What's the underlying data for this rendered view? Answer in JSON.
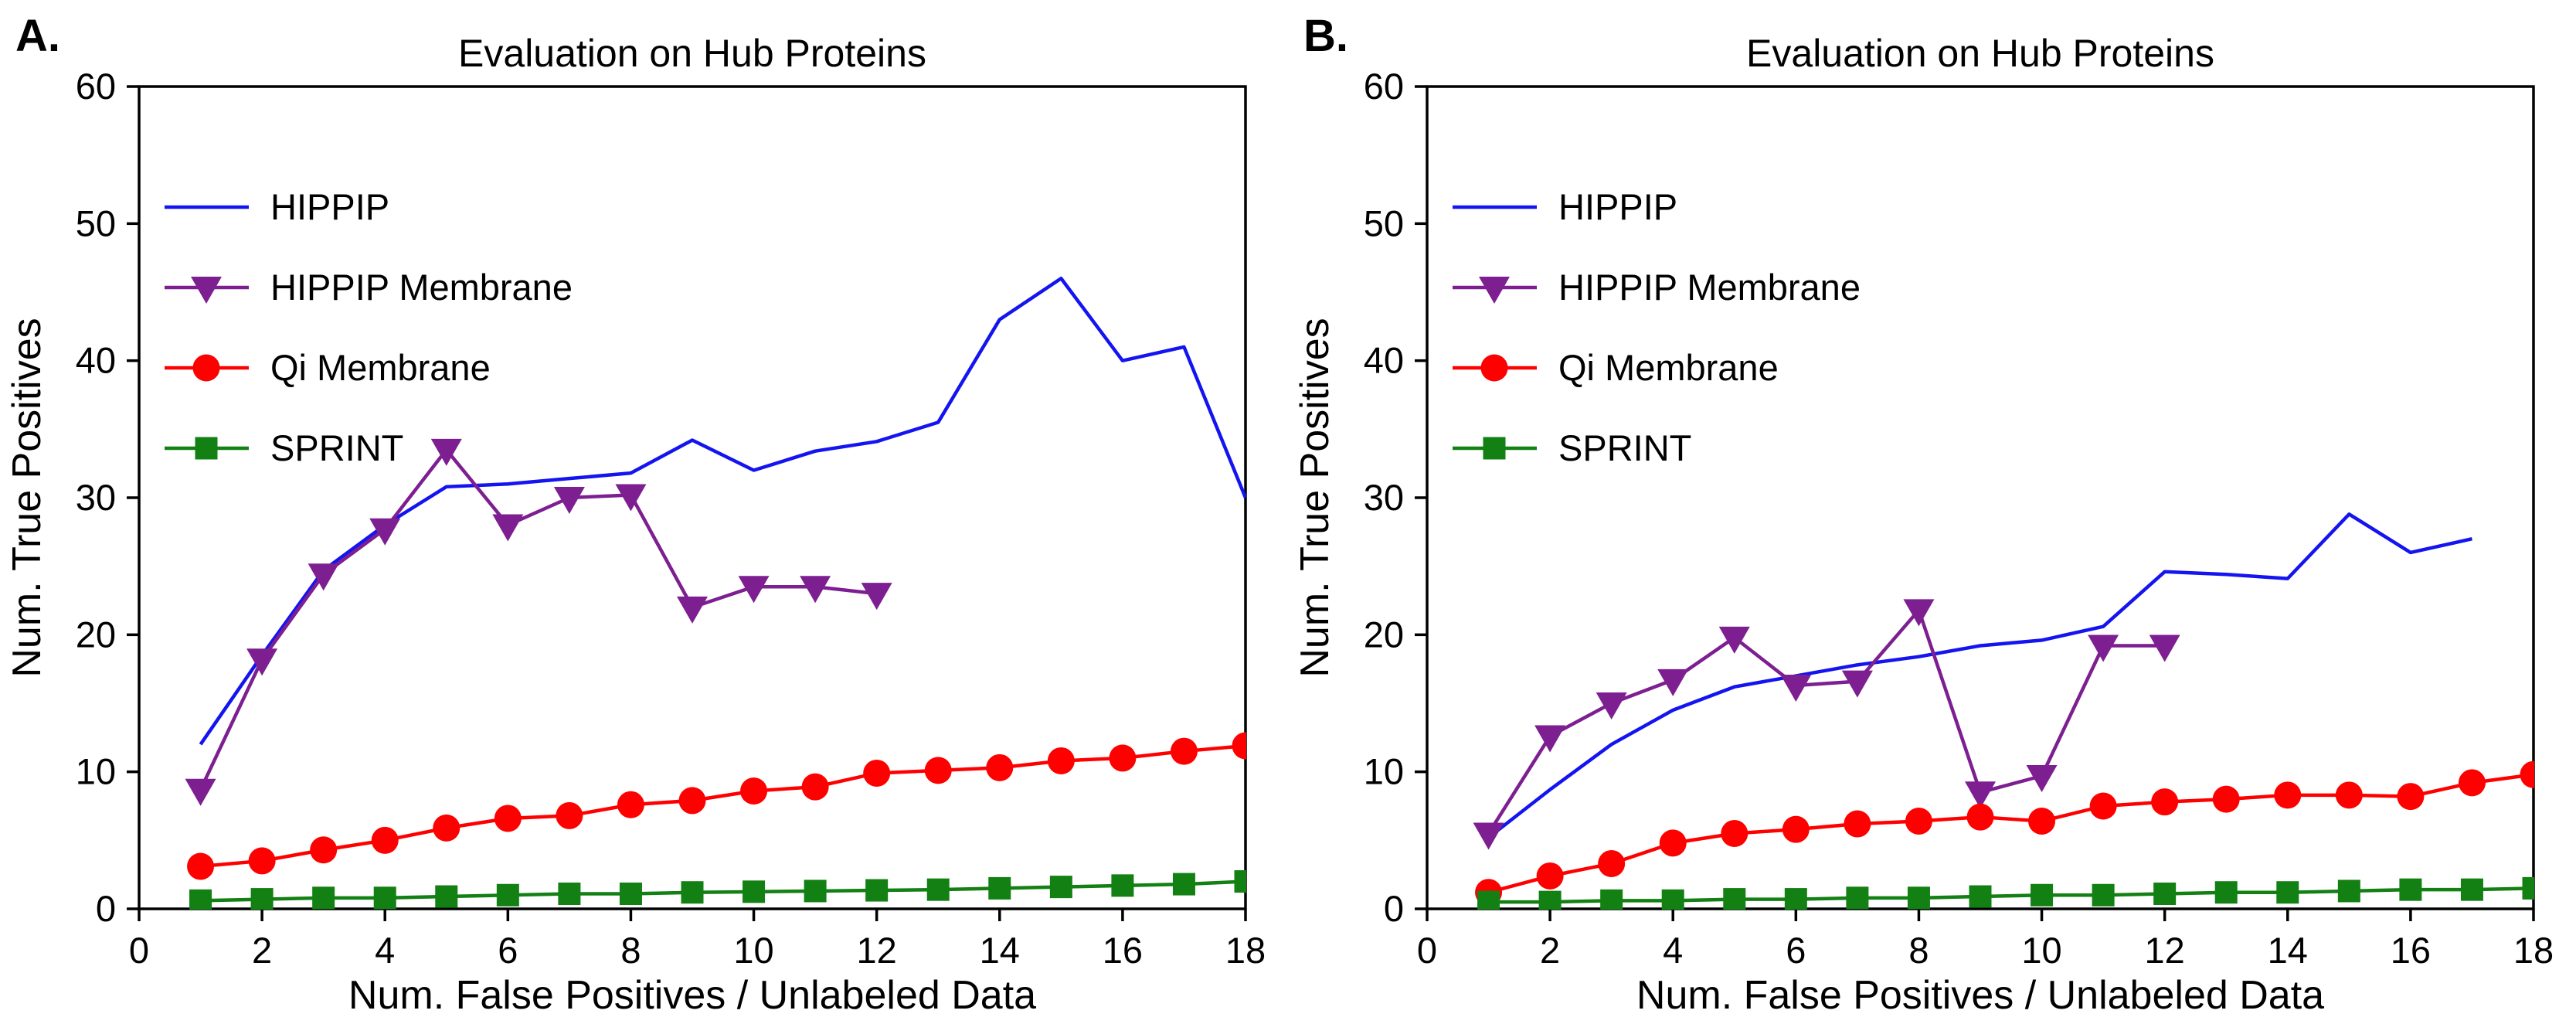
{
  "figure": {
    "background": "#ffffff",
    "text_color": "#000000"
  },
  "chart_data": [
    {
      "type": "line",
      "panel_label": "A.",
      "title": "Evaluation on Hub Proteins",
      "xlabel": "Num. False Positives / Unlabeled Data",
      "ylabel": "Num. True Positives",
      "xlim": [
        0,
        18
      ],
      "ylim": [
        0,
        60
      ],
      "xticks": [
        0,
        2,
        4,
        6,
        8,
        10,
        12,
        14,
        16,
        18
      ],
      "yticks": [
        0,
        10,
        20,
        30,
        40,
        50,
        60
      ],
      "grid": false,
      "legend_position": "top-left",
      "series": [
        {
          "name": "HIPPIP",
          "color": "#1414f0",
          "marker": "none",
          "x": [
            1,
            2,
            3,
            4,
            5,
            6,
            7,
            8,
            9,
            10,
            11,
            12,
            13,
            14,
            15,
            16,
            17,
            18
          ],
          "y": [
            12,
            18.5,
            24.7,
            28,
            30.8,
            31,
            31.4,
            31.8,
            34.2,
            32,
            33.4,
            34.1,
            35.5,
            43,
            46,
            40,
            41,
            30
          ]
        },
        {
          "name": "HIPPIP Membrane",
          "color": "#7d1f91",
          "marker": "triangle-down",
          "x": [
            1,
            2,
            3,
            4,
            5,
            6,
            7,
            8,
            9,
            10,
            11,
            12
          ],
          "y": [
            8.7,
            18.2,
            24.4,
            27.7,
            33.5,
            28,
            30,
            30.2,
            22,
            23.5,
            23.5,
            23
          ]
        },
        {
          "name": "Qi Membrane",
          "color": "#ff0000",
          "marker": "circle",
          "x": [
            1,
            2,
            3,
            4,
            5,
            6,
            7,
            8,
            9,
            10,
            11,
            12,
            13,
            14,
            15,
            16,
            17,
            18
          ],
          "y": [
            3.1,
            3.5,
            4.3,
            5,
            5.9,
            6.6,
            6.8,
            7.6,
            7.9,
            8.6,
            8.9,
            9.9,
            10.1,
            10.3,
            10.8,
            11,
            11.5,
            11.9
          ]
        },
        {
          "name": "SPRINT",
          "color": "#128012",
          "marker": "square",
          "x": [
            1,
            2,
            3,
            4,
            5,
            6,
            7,
            8,
            9,
            10,
            11,
            12,
            13,
            14,
            15,
            16,
            17,
            18
          ],
          "y": [
            0.6,
            0.7,
            0.8,
            0.8,
            0.9,
            1,
            1.1,
            1.1,
            1.2,
            1.25,
            1.3,
            1.35,
            1.4,
            1.5,
            1.6,
            1.7,
            1.8,
            2
          ]
        }
      ]
    },
    {
      "type": "line",
      "panel_label": "B.",
      "title": "Evaluation on Hub Proteins",
      "xlabel": "Num. False Positives / Unlabeled Data",
      "ylabel": "Num. True Positives",
      "xlim": [
        0,
        18
      ],
      "ylim": [
        0,
        60
      ],
      "xticks": [
        0,
        2,
        4,
        6,
        8,
        10,
        12,
        14,
        16,
        18
      ],
      "yticks": [
        0,
        10,
        20,
        30,
        40,
        50,
        60
      ],
      "grid": false,
      "legend_position": "top-left",
      "series": [
        {
          "name": "HIPPIP",
          "color": "#1414f0",
          "marker": "none",
          "x": [
            1,
            2,
            3,
            4,
            5,
            6,
            7,
            8,
            9,
            10,
            11,
            12,
            13,
            14,
            15,
            16,
            17
          ],
          "y": [
            5.2,
            8.7,
            12,
            14.5,
            16.2,
            17,
            17.8,
            18.4,
            19.2,
            19.6,
            20.6,
            24.6,
            24.4,
            24.1,
            28.8,
            26,
            27
          ]
        },
        {
          "name": "HIPPIP Membrane",
          "color": "#7d1f91",
          "marker": "triangle-down",
          "x": [
            1,
            2,
            3,
            4,
            5,
            6,
            7,
            8,
            9,
            10,
            11,
            12
          ],
          "y": [
            5.5,
            12.6,
            15,
            16.7,
            19.8,
            16.3,
            16.6,
            21.8,
            8.5,
            9.7,
            19.2,
            19.2
          ]
        },
        {
          "name": "Qi Membrane",
          "color": "#ff0000",
          "marker": "circle",
          "x": [
            1,
            2,
            3,
            4,
            5,
            6,
            7,
            8,
            9,
            10,
            11,
            12,
            13,
            14,
            15,
            16,
            17,
            18
          ],
          "y": [
            1.2,
            2.4,
            3.3,
            4.8,
            5.5,
            5.8,
            6.2,
            6.4,
            6.7,
            6.4,
            7.5,
            7.8,
            8,
            8.3,
            8.3,
            8.2,
            9.2,
            9.8
          ]
        },
        {
          "name": "SPRINT",
          "color": "#128012",
          "marker": "square",
          "x": [
            1,
            2,
            3,
            4,
            5,
            6,
            7,
            8,
            9,
            10,
            11,
            12,
            13,
            14,
            15,
            16,
            17,
            18
          ],
          "y": [
            0.5,
            0.5,
            0.6,
            0.6,
            0.7,
            0.7,
            0.8,
            0.8,
            0.9,
            1,
            1,
            1.1,
            1.2,
            1.2,
            1.3,
            1.4,
            1.4,
            1.5
          ]
        }
      ]
    }
  ]
}
